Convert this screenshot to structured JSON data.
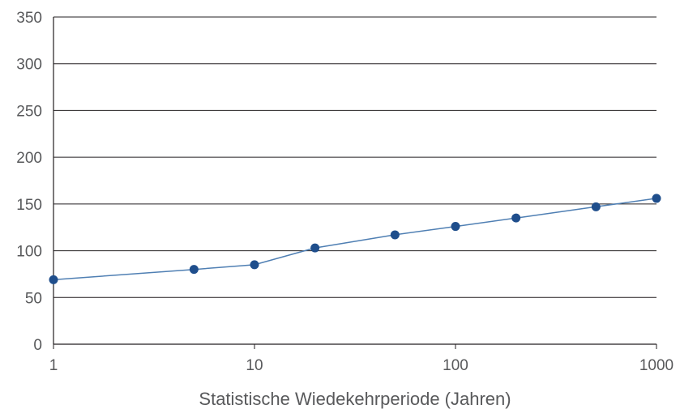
{
  "chart_data": {
    "type": "line",
    "xlabel": "Statistische Wiedekehrperiode (Jahren)",
    "ylabel": "",
    "x_scale": "log",
    "xlim": [
      1,
      1000
    ],
    "ylim": [
      0,
      350
    ],
    "x_ticks": [
      1,
      10,
      100,
      1000
    ],
    "x_tick_labels": [
      "1",
      "10",
      "100",
      "1000"
    ],
    "y_ticks": [
      0,
      50,
      100,
      150,
      200,
      250,
      300,
      350
    ],
    "y_tick_labels": [
      "0",
      "50",
      "100",
      "150",
      "200",
      "250",
      "300",
      "350"
    ],
    "grid": "horizontal",
    "legend": "none",
    "series": [
      {
        "x": [
          1,
          5,
          10,
          20,
          50,
          100,
          200,
          500,
          1000
        ],
        "y": [
          69,
          80,
          85,
          103,
          117,
          126,
          135,
          147,
          156
        ]
      }
    ],
    "colors": {
      "marker": "#1f4e8c",
      "line": "#4f7fb3",
      "grid": "#231f20",
      "axis": "#231f20",
      "text": "#58595b"
    }
  }
}
